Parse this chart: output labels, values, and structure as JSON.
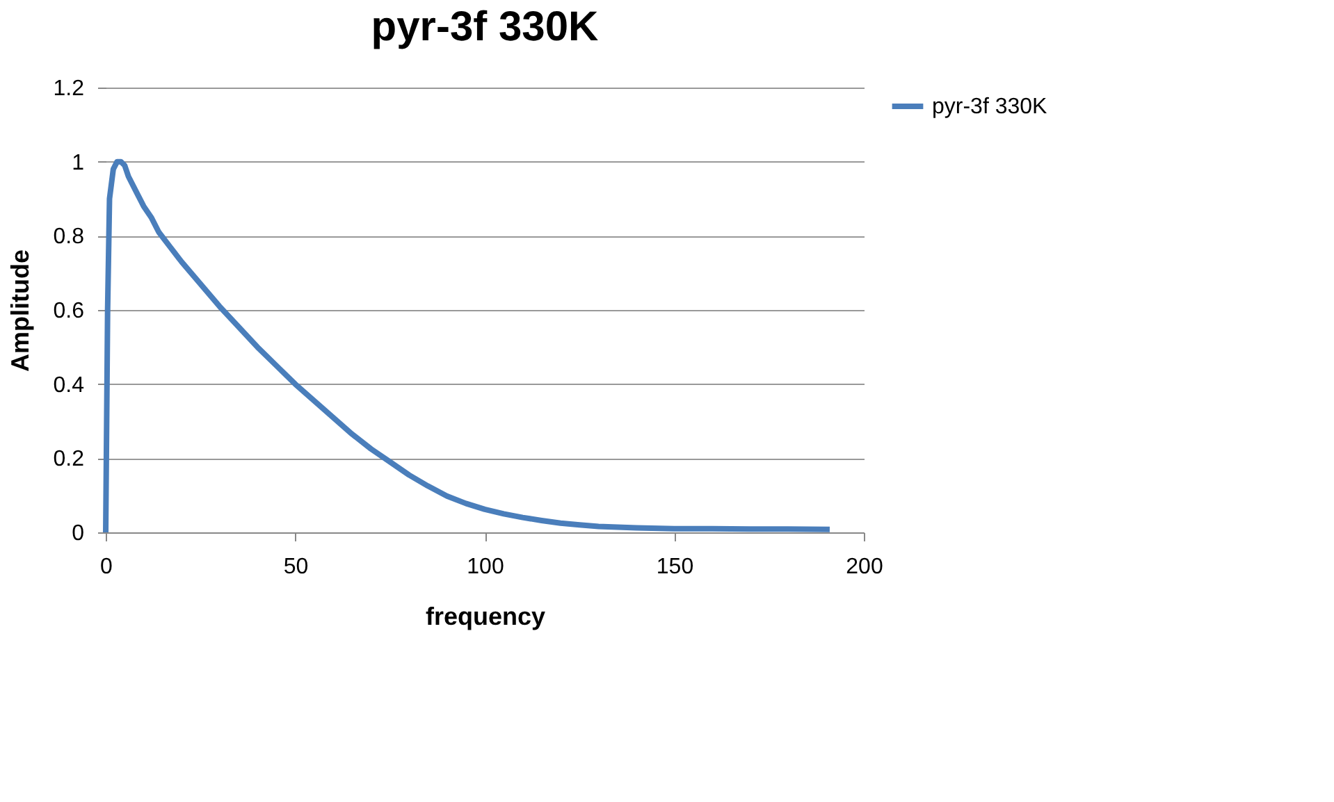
{
  "chart_data": {
    "type": "line",
    "title": "pyr-3f 330K",
    "xlabel": "frequency",
    "ylabel": "Amplitude",
    "x": [
      0,
      0.5,
      1,
      2,
      3,
      4,
      5,
      6,
      8,
      10,
      12,
      14,
      17,
      20,
      25,
      30,
      35,
      40,
      45,
      50,
      55,
      60,
      65,
      70,
      75,
      80,
      85,
      90,
      95,
      100,
      105,
      110,
      115,
      120,
      125,
      130,
      140,
      150,
      160,
      170,
      180,
      191
    ],
    "series": [
      {
        "name": "pyr-3f 330K",
        "color": "#4a7ebb",
        "values": [
          0,
          0.6,
          0.9,
          0.98,
          1.0,
          1.0,
          0.99,
          0.96,
          0.92,
          0.88,
          0.85,
          0.81,
          0.77,
          0.73,
          0.67,
          0.61,
          0.555,
          0.5,
          0.45,
          0.4,
          0.355,
          0.31,
          0.265,
          0.225,
          0.19,
          0.155,
          0.125,
          0.098,
          0.078,
          0.062,
          0.05,
          0.04,
          0.032,
          0.025,
          0.02,
          0.016,
          0.012,
          0.01,
          0.01,
          0.009,
          0.009,
          0.008
        ]
      }
    ],
    "xlim": [
      0,
      200
    ],
    "xticks": [
      0,
      50,
      100,
      150,
      200
    ],
    "ylim": [
      0,
      1.2
    ],
    "yticks": [
      0,
      0.2,
      0.4,
      0.6,
      0.8,
      1,
      1.2
    ],
    "grid": "y",
    "legend": "right",
    "marker": "none",
    "line_style": "solid"
  }
}
